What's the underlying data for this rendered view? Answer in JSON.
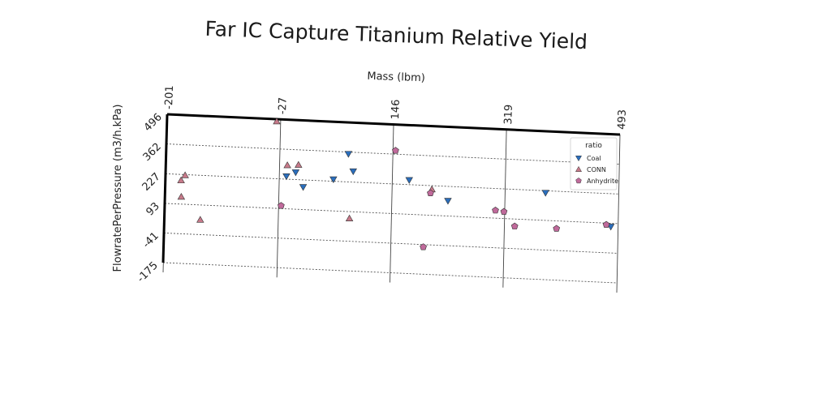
{
  "chart_data": {
    "type": "scatter",
    "title": "Far IC Capture Titanium Relative Yield",
    "xlabel": "Mass (lbm)",
    "ylabel": "FlowratePerPressure (m3/h.kPa)",
    "xlim": [
      -201,
      493
    ],
    "ylim": [
      -175,
      496
    ],
    "x_ticks": [
      -201,
      -27,
      146,
      319,
      493
    ],
    "y_ticks": [
      -175,
      -41,
      93,
      227,
      362,
      496
    ],
    "grid": "horizontal dashed",
    "legend": {
      "title": "ratio",
      "position": "top-right"
    },
    "series": [
      {
        "name": "Coal",
        "marker": "triangle-down",
        "color": "#2a6ebd",
        "points": [
          [
            78,
            354
          ],
          [
            -16,
            240
          ],
          [
            -2,
            260
          ],
          [
            10,
            195
          ],
          [
            56,
            236
          ],
          [
            172,
            248
          ],
          [
            232,
            162
          ],
          [
            381,
            218
          ],
          [
            482,
            78
          ],
          [
            86,
            276
          ]
        ]
      },
      {
        "name": "CONN",
        "marker": "triangle-up",
        "color": "#c77a8a",
        "points": [
          [
            -33,
            486
          ],
          [
            -15,
            290
          ],
          [
            2,
            294
          ],
          [
            -171,
            224
          ],
          [
            -177,
            200
          ],
          [
            -176,
            126
          ],
          [
            -146,
            26
          ],
          [
            82,
            62
          ],
          [
            207,
            210
          ]
        ]
      },
      {
        "name": "Anhydrite",
        "marker": "pentagon",
        "color": "#c06a9b",
        "points": [
          [
            150,
            378
          ],
          [
            205,
            193
          ],
          [
            -23,
            106
          ],
          [
            305,
            128
          ],
          [
            318,
            124
          ],
          [
            335,
            60
          ],
          [
            399,
            58
          ],
          [
            196,
            -52
          ],
          [
            475,
            86
          ]
        ]
      }
    ]
  }
}
